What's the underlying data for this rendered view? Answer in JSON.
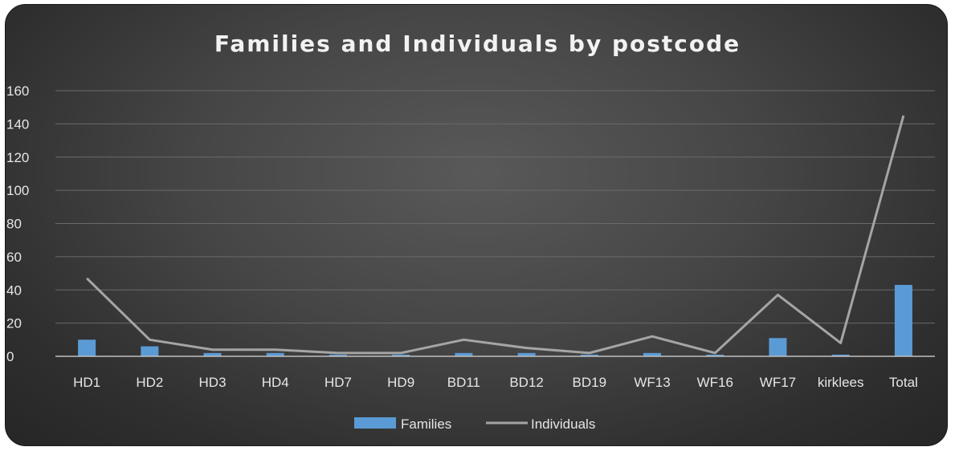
{
  "chart_data": {
    "type": "bar",
    "title": "Families and Individuals by postcode",
    "categories": [
      "HD1",
      "HD2",
      "HD3",
      "HD4",
      "HD7",
      "HD9",
      "BD11",
      "BD12",
      "BD19",
      "WF13",
      "WF16",
      "WF17",
      "kirklees",
      "Total"
    ],
    "series": [
      {
        "name": "Families",
        "type": "bar",
        "color": "#5b9bd5",
        "values": [
          10,
          6,
          2,
          2,
          1,
          1,
          2,
          2,
          1,
          2,
          1,
          11,
          1,
          43
        ]
      },
      {
        "name": "Individuals",
        "type": "line",
        "color": "#a5a5a5",
        "values": [
          47,
          10,
          4,
          4,
          2,
          2,
          10,
          5,
          2,
          12,
          2,
          37,
          8,
          145
        ]
      }
    ],
    "ylim": [
      0,
      160
    ],
    "yticks": [
      0,
      20,
      40,
      60,
      80,
      100,
      120,
      140,
      160
    ],
    "grid": true,
    "legend_position": "bottom"
  }
}
